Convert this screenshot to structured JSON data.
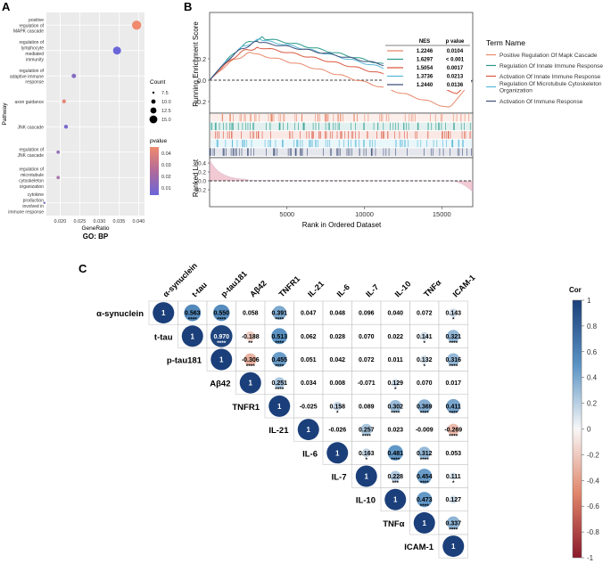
{
  "panels": {
    "a": "A",
    "b": "B",
    "c": "C"
  },
  "panel_a": {
    "chart_data": {
      "type": "scatter",
      "title": "GO: BP",
      "xlabel": "GeneRatio",
      "ylabel": "Pathway",
      "x_ticks": [
        "0.020",
        "0.025",
        "0.030",
        "0.035",
        "0.040"
      ],
      "xlim": [
        0.0165,
        0.0415
      ],
      "categories": [
        "positive regulation of MAPK cascade",
        "regulation of lymphocyte mediated immunity",
        "regulation of adaptive immune response",
        "axon guidance",
        "JNK cascade",
        "regulation of JNK cascade",
        "regulation of microtubule cytoskeleton organization",
        "cytokine production involved in immune response"
      ],
      "x": [
        0.0395,
        0.0345,
        0.0235,
        0.021,
        0.0215,
        0.0195,
        0.0195,
        0.016
      ],
      "count": [
        16,
        14,
        8,
        7,
        7,
        6,
        6,
        4
      ],
      "pvalue": [
        0.045,
        0.001,
        0.01,
        0.04,
        0.005,
        0.015,
        0.02,
        0.01
      ],
      "size_legend": {
        "title": "Count",
        "labels": [
          "7.5",
          "10.0",
          "12.5",
          "15.0"
        ]
      },
      "color_legend": {
        "title": "pvalue",
        "labels": [
          "0.04",
          "0.03",
          "0.02",
          "0.01"
        ]
      },
      "colors": {
        "low": "#6a66d8",
        "high": "#f08a6e"
      }
    }
  },
  "panel_b": {
    "chart_data": {
      "type": "line",
      "ylabel_top": "Running Enrichment Score",
      "ylabel_bottom": "Ranked List",
      "xlabel": "Rank in Ordered Dataset",
      "x_ticks": [
        "5000",
        "10000",
        "15000"
      ],
      "y_ticks_top": [
        "0.2",
        "0.0",
        "-0.2"
      ],
      "y_ticks_bottom": [
        "0.4",
        "0.2",
        "0.0",
        "-0.2"
      ],
      "xlim": [
        0,
        17000
      ],
      "legend_title": "Term Name",
      "table_header": {
        "nes": "NES",
        "p": "p value"
      },
      "series": [
        {
          "name": "Positive Regulation Of Mapk Cascade",
          "nes": "1.2246",
          "p": "0.0104",
          "color": "#e8886a"
        },
        {
          "name": "Regulation Of Innate Immune Response",
          "nes": "1.6297",
          "p": "< 0.001",
          "color": "#2a9a8a"
        },
        {
          "name": "Activation Of Innate Immune Response",
          "nes": "1.5054",
          "p": "0.0017",
          "color": "#d9573f"
        },
        {
          "name": "Regulation Of Microtubule Cytoskeleton Organization",
          "nes": "1.3736",
          "p": "0.0213",
          "color": "#5ab8d8"
        },
        {
          "name": "Activation Of Immune Response",
          "nes": "1.2440",
          "p": "0.0136",
          "color": "#3f4f7a"
        }
      ]
    }
  },
  "panel_c": {
    "chart_data": {
      "type": "heatmap",
      "variables": [
        "α-synuclein",
        "t-tau",
        "p-tau181",
        "Aβ42",
        "TNFR1",
        "IL-21",
        "IL-6",
        "IL-7",
        "IL-10",
        "TNFα",
        "ICAM-1"
      ],
      "cells": [
        [
          [
            "1",
            "",
            1
          ],
          [
            "0.563",
            "****",
            0.563
          ],
          [
            "0.550",
            "****",
            0.55
          ],
          [
            "0.058",
            "",
            0.058
          ],
          [
            "0.391",
            "****",
            0.391
          ],
          [
            "0.047",
            "",
            0.047
          ],
          [
            "0.048",
            "",
            0.048
          ],
          [
            "0.096",
            "",
            0.096
          ],
          [
            "0.040",
            "",
            0.04
          ],
          [
            "0.072",
            "",
            0.072
          ],
          [
            "0.143",
            "*",
            0.143
          ]
        ],
        [
          [
            "1",
            "",
            1
          ],
          [
            "0.970",
            "****",
            0.97
          ],
          [
            "-0.188",
            "**",
            -0.188
          ],
          [
            "0.513",
            "****",
            0.513
          ],
          [
            "0.062",
            "",
            0.062
          ],
          [
            "0.028",
            "",
            0.028
          ],
          [
            "0.070",
            "",
            0.07
          ],
          [
            "0.022",
            "",
            0.022
          ],
          [
            "0.141",
            "*",
            0.141
          ],
          [
            "0.321",
            "****",
            0.321
          ]
        ],
        [
          [
            "1",
            "",
            1
          ],
          [
            "-0.306",
            "****",
            -0.306
          ],
          [
            "0.455",
            "****",
            0.455
          ],
          [
            "0.051",
            "",
            0.051
          ],
          [
            "0.042",
            "",
            0.042
          ],
          [
            "0.072",
            "",
            0.072
          ],
          [
            "0.011",
            "",
            0.011
          ],
          [
            "0.132",
            "*",
            0.132
          ],
          [
            "0.316",
            "****",
            0.316
          ]
        ],
        [
          [
            "1",
            "",
            1
          ],
          [
            "0.251",
            "****",
            0.251
          ],
          [
            "0.034",
            "",
            0.034
          ],
          [
            "0.008",
            "",
            0.008
          ],
          [
            "-0.071",
            "",
            -0.071
          ],
          [
            "0.129",
            "*",
            0.129
          ],
          [
            "0.070",
            "",
            0.07
          ],
          [
            "0.017",
            "",
            0.017
          ]
        ],
        [
          [
            "1",
            "",
            1
          ],
          [
            "-0.025",
            "",
            -0.025
          ],
          [
            "0.158",
            "*",
            0.158
          ],
          [
            "0.089",
            "",
            0.089
          ],
          [
            "0.302",
            "****",
            0.302
          ],
          [
            "0.369",
            "****",
            0.369
          ],
          [
            "0.411",
            "****",
            0.411
          ]
        ],
        [
          [
            "1",
            "",
            1
          ],
          [
            "-0.026",
            "",
            -0.026
          ],
          [
            "0.257",
            "****",
            0.257
          ],
          [
            "0.023",
            "",
            0.023
          ],
          [
            "-0.009",
            "",
            -0.009
          ],
          [
            "-0.269",
            "****",
            -0.269
          ]
        ],
        [
          [
            "1",
            "",
            1
          ],
          [
            "0.163",
            "*",
            0.163
          ],
          [
            "0.481",
            "****",
            0.481
          ],
          [
            "0.312",
            "****",
            0.312
          ],
          [
            "0.053",
            "",
            0.053
          ]
        ],
        [
          [
            "1",
            "",
            1
          ],
          [
            "0.228",
            "***",
            0.228
          ],
          [
            "0.454",
            "****",
            0.454
          ],
          [
            "0.111",
            "*",
            0.111
          ]
        ],
        [
          [
            "1",
            "",
            1
          ],
          [
            "0.473",
            "****",
            0.473
          ],
          [
            "0.127",
            "",
            0.127
          ]
        ],
        [
          [
            "1",
            "",
            1
          ],
          [
            "0.337",
            "****",
            0.337
          ]
        ],
        [
          [
            "1",
            "",
            1
          ]
        ]
      ],
      "colorbar": {
        "title": "Cor",
        "ticks": [
          "1",
          "0.8",
          "0.6",
          "0.4",
          "0.2",
          "0",
          "-0.2",
          "-0.4",
          "-0.6",
          "-0.8",
          "-1"
        ]
      },
      "colors": {
        "positive": "#1b3f7a",
        "negative": "#8b1a2b",
        "neutral": "#f7f7f7"
      }
    }
  }
}
